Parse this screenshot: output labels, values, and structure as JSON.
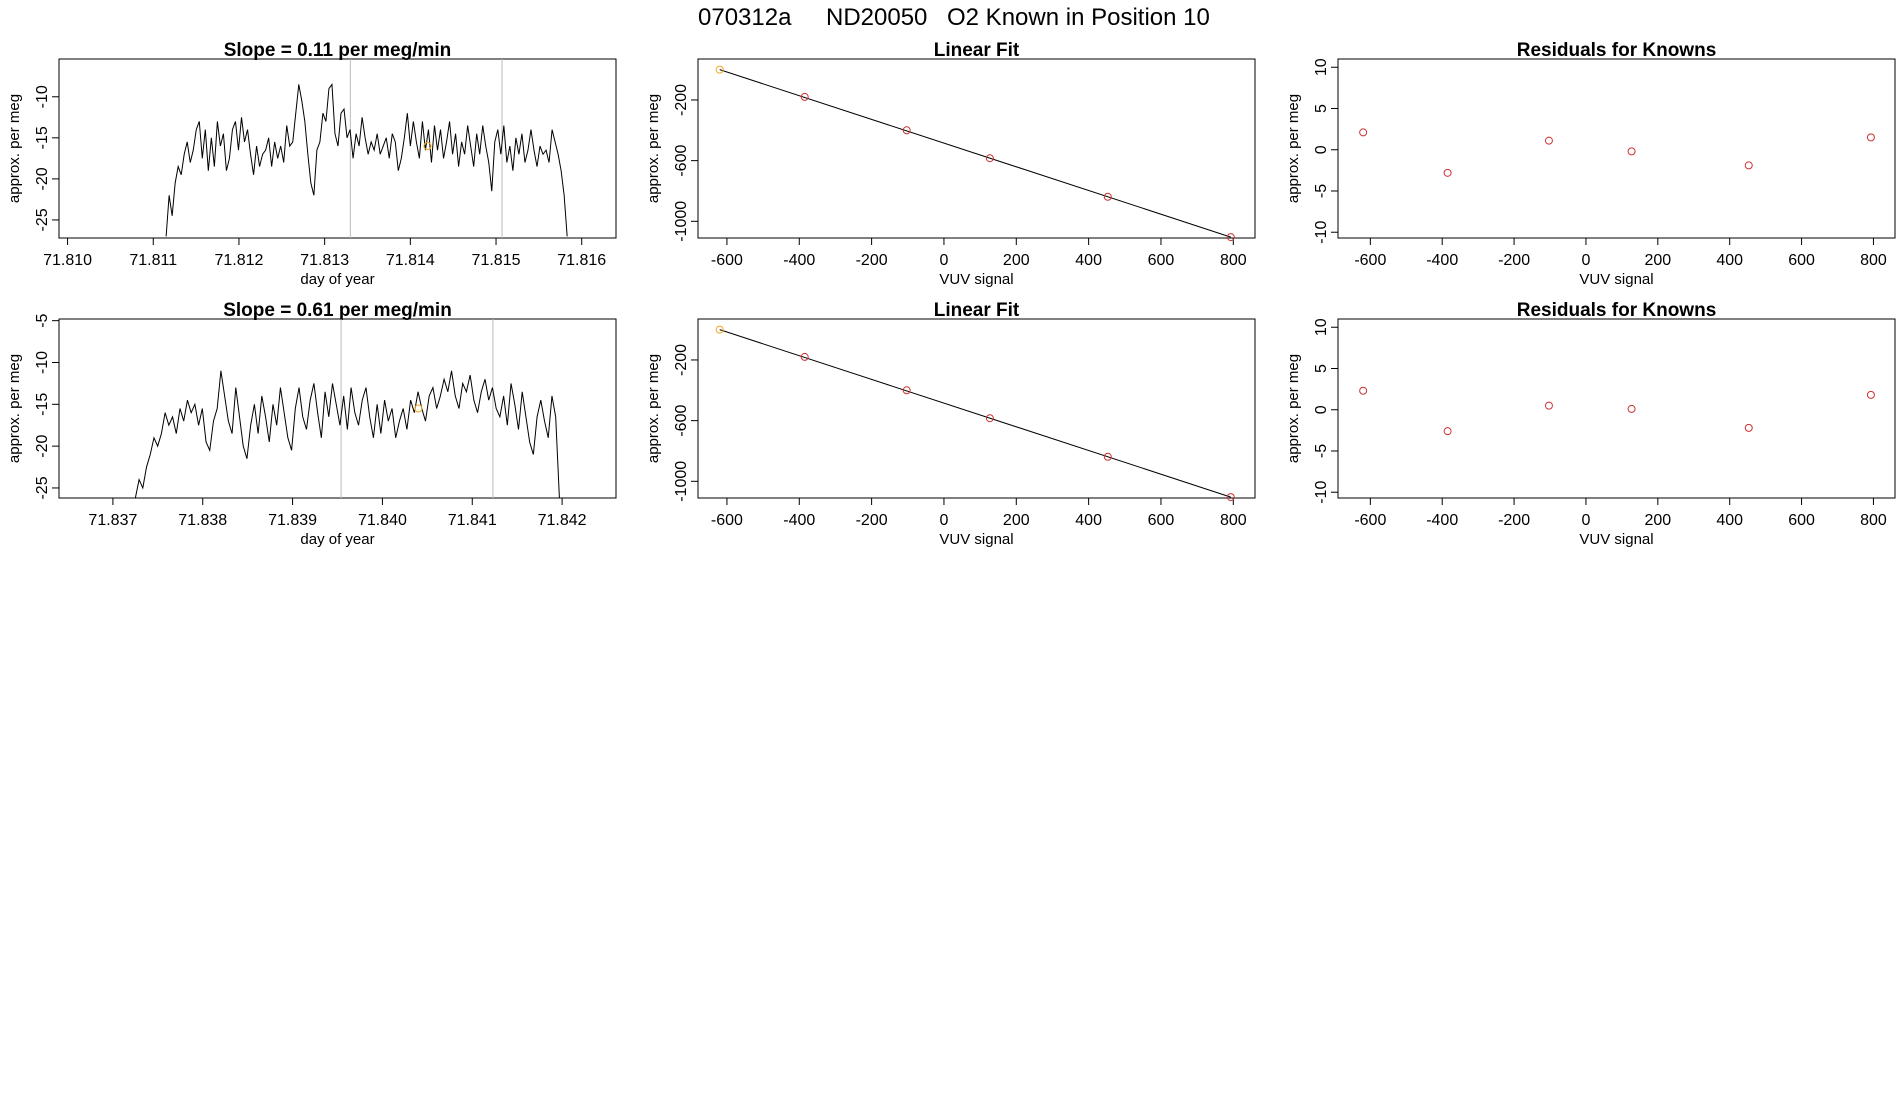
{
  "page": {
    "title_parts": [
      "070312a",
      "ND20050",
      "O2 Known in Position  10"
    ]
  },
  "chart_data": [
    {
      "id": "p1",
      "type": "line",
      "title": "Slope =  0.11  per meg/min",
      "xlabel": "day of year",
      "ylabel": "approx. per meg",
      "xlim": [
        71.8099,
        71.8164
      ],
      "ylim": [
        -27.2,
        -5.4
      ],
      "xticks": [
        71.81,
        71.811,
        71.812,
        71.813,
        71.814,
        71.815,
        71.816
      ],
      "xtick_labels": [
        "71.810",
        "71.811",
        "71.812",
        "71.813",
        "71.814",
        "71.815",
        "71.816"
      ],
      "yticks": [
        -25,
        -20,
        -15,
        -10
      ],
      "ytick_labels": [
        "-25",
        "-20",
        "-15",
        "-10"
      ],
      "vlines": [
        71.8133,
        71.81507
      ],
      "highlight_point": {
        "x": 71.8142,
        "y": -16.0,
        "color": "#f5a623"
      },
      "line_color": "#000000",
      "series": [
        {
          "x_start": 71.81115,
          "x_end": 71.81583,
          "values": [
            -27.0,
            -22.0,
            -24.5,
            -20.5,
            -18.5,
            -19.5,
            -17.0,
            -15.5,
            -18.0,
            -16.5,
            -14.0,
            -13.0,
            -17.5,
            -14.0,
            -19.0,
            -15.0,
            -18.5,
            -13.0,
            -16.0,
            -14.5,
            -19.0,
            -17.5,
            -14.0,
            -13.0,
            -16.5,
            -12.5,
            -15.5,
            -14.0,
            -17.0,
            -19.5,
            -16.0,
            -18.5,
            -17.0,
            -16.5,
            -15.0,
            -18.5,
            -15.5,
            -17.5,
            -16.0,
            -18.0,
            -13.5,
            -16.0,
            -15.5,
            -12.0,
            -8.5,
            -10.5,
            -13.0,
            -17.0,
            -20.5,
            -22.0,
            -16.5,
            -15.5,
            -12.0,
            -13.0,
            -9.0,
            -8.5,
            -14.5,
            -16.0,
            -12.0,
            -11.5,
            -15.0,
            -14.0,
            -17.5,
            -14.5,
            -16.0,
            -12.5,
            -15.0,
            -17.0,
            -15.5,
            -16.5,
            -14.5,
            -17.0,
            -16.0,
            -15.0,
            -17.5,
            -14.5,
            -15.5,
            -19.0,
            -17.5,
            -15.0,
            -12.0,
            -16.0,
            -13.0,
            -15.5,
            -17.5,
            -13.0,
            -16.5,
            -14.0,
            -18.0,
            -13.5,
            -16.5,
            -14.0,
            -17.5,
            -15.5,
            -13.0,
            -17.0,
            -14.5,
            -18.5,
            -15.5,
            -17.0,
            -13.5,
            -16.0,
            -18.5,
            -14.5,
            -17.0,
            -13.5,
            -16.0,
            -18.0,
            -21.5,
            -15.5,
            -14.0,
            -17.0,
            -13.5,
            -18.0,
            -16.0,
            -19.0,
            -15.0,
            -17.0,
            -14.5,
            -18.0,
            -16.5,
            -14.0,
            -16.5,
            -18.5,
            -16.0,
            -17.0,
            -16.5,
            -18.0,
            -14.0,
            -15.5,
            -17.0,
            -19.0,
            -22.0,
            -27.0
          ]
        }
      ]
    },
    {
      "id": "p2",
      "type": "scatter",
      "title": "Linear Fit",
      "xlabel": "VUV signal",
      "ylabel": "approx. per meg",
      "xlim": [
        -680,
        860
      ],
      "ylim": [
        -1110,
        70
      ],
      "xticks": [
        -600,
        -400,
        -200,
        0,
        200,
        400,
        600,
        800
      ],
      "xtick_labels": [
        "-600",
        "-400",
        "-200",
        "0",
        "200",
        "400",
        "600",
        "800"
      ],
      "yticks": [
        -1000,
        -600,
        -200
      ],
      "ytick_labels": [
        "-1000",
        "-600",
        "-200"
      ],
      "points": {
        "x": [
          -620,
          -385,
          -103,
          127,
          453,
          793
        ],
        "y": [
          0,
          -180,
          -400,
          -584,
          -838,
          -1104
        ]
      },
      "highlight_index": 0,
      "highlight_color": "#f5a623",
      "point_color": "#cc3333",
      "fit_line": {
        "x": [
          -620,
          793
        ],
        "y": [
          0,
          -1104
        ]
      }
    },
    {
      "id": "p3",
      "type": "scatter",
      "title": "Residuals for Knowns",
      "xlabel": "VUV signal",
      "ylabel": "approx. per meg",
      "xlim": [
        -690,
        860
      ],
      "ylim": [
        -10.7,
        11.0
      ],
      "xticks": [
        -600,
        -400,
        -200,
        0,
        200,
        400,
        600,
        800
      ],
      "xtick_labels": [
        "-600",
        "-400",
        "-200",
        "0",
        "200",
        "400",
        "600",
        "800"
      ],
      "yticks": [
        -10,
        -5,
        0,
        5,
        10
      ],
      "ytick_labels": [
        "-10",
        "-5",
        "0",
        "5",
        "10"
      ],
      "points": {
        "x": [
          -620,
          -385,
          -103,
          127,
          453,
          793
        ],
        "y": [
          2.1,
          -2.8,
          1.1,
          -0.2,
          -1.9,
          1.5
        ]
      },
      "point_color": "#cc3333"
    },
    {
      "id": "p4",
      "type": "line",
      "title": "Slope =  0.61  per meg/min",
      "xlabel": "day of year",
      "ylabel": "approx. per meg",
      "xlim": [
        71.8364,
        71.8426
      ],
      "ylim": [
        -26.2,
        -4.8
      ],
      "xticks": [
        71.837,
        71.838,
        71.839,
        71.84,
        71.841,
        71.842
      ],
      "xtick_labels": [
        "71.837",
        "71.838",
        "71.839",
        "71.840",
        "71.841",
        "71.842"
      ],
      "yticks": [
        -25,
        -20,
        -15,
        -10,
        -5
      ],
      "ytick_labels": [
        "-25",
        "-20",
        "-15",
        "-10",
        "-5"
      ],
      "vlines": [
        71.83954,
        71.84123
      ],
      "highlight_point": {
        "x": 71.8404,
        "y": -15.5,
        "color": "#f5a623"
      },
      "line_color": "#000000",
      "series": [
        {
          "x_start": 71.83725,
          "x_end": 71.84197,
          "values": [
            -26.5,
            -24.0,
            -25.0,
            -22.5,
            -21.0,
            -19.0,
            -20.0,
            -18.5,
            -16.0,
            -17.5,
            -16.5,
            -18.5,
            -15.5,
            -17.0,
            -14.5,
            -16.0,
            -15.0,
            -17.5,
            -15.5,
            -19.5,
            -20.5,
            -17.0,
            -15.5,
            -11.0,
            -14.0,
            -17.0,
            -18.5,
            -13.0,
            -16.5,
            -20.0,
            -21.5,
            -17.5,
            -15.0,
            -18.5,
            -14.0,
            -16.5,
            -19.5,
            -15.0,
            -17.5,
            -13.0,
            -16.0,
            -19.0,
            -20.5,
            -15.5,
            -13.0,
            -16.5,
            -18.0,
            -14.5,
            -12.5,
            -16.0,
            -19.0,
            -13.5,
            -16.5,
            -12.5,
            -15.0,
            -17.5,
            -14.0,
            -18.0,
            -13.0,
            -16.0,
            -17.5,
            -14.5,
            -13.0,
            -16.5,
            -19.0,
            -15.0,
            -18.5,
            -14.5,
            -17.0,
            -15.5,
            -19.0,
            -17.0,
            -15.5,
            -18.0,
            -14.5,
            -16.0,
            -13.5,
            -15.5,
            -17.0,
            -14.0,
            -13.0,
            -15.5,
            -14.0,
            -12.0,
            -13.5,
            -11.0,
            -14.0,
            -15.5,
            -12.5,
            -13.5,
            -11.5,
            -14.5,
            -16.0,
            -13.5,
            -12.0,
            -14.5,
            -13.0,
            -15.5,
            -16.5,
            -14.0,
            -17.5,
            -12.5,
            -15.0,
            -18.0,
            -13.5,
            -16.5,
            -19.5,
            -21.0,
            -16.5,
            -14.5,
            -17.0,
            -19.0,
            -14.0,
            -16.5,
            -26.5
          ]
        }
      ]
    },
    {
      "id": "p5",
      "type": "scatter",
      "title": "Linear Fit",
      "xlabel": "VUV signal",
      "ylabel": "approx. per meg",
      "xlim": [
        -680,
        860
      ],
      "ylim": [
        -1110,
        70
      ],
      "xticks": [
        -600,
        -400,
        -200,
        0,
        200,
        400,
        600,
        800
      ],
      "xtick_labels": [
        "-600",
        "-400",
        "-200",
        "0",
        "200",
        "400",
        "600",
        "800"
      ],
      "yticks": [
        -1000,
        -600,
        -200
      ],
      "ytick_labels": [
        "-1000",
        "-600",
        "-200"
      ],
      "points": {
        "x": [
          -620,
          -385,
          -103,
          127,
          453,
          793
        ],
        "y": [
          0,
          -180,
          -400,
          -584,
          -838,
          -1104
        ]
      },
      "highlight_index": 0,
      "highlight_color": "#f5a623",
      "point_color": "#cc3333",
      "fit_line": {
        "x": [
          -620,
          793
        ],
        "y": [
          0,
          -1104
        ]
      }
    },
    {
      "id": "p6",
      "type": "scatter",
      "title": "Residuals for Knowns",
      "xlabel": "VUV signal",
      "ylabel": "approx. per meg",
      "xlim": [
        -690,
        860
      ],
      "ylim": [
        -10.7,
        11.0
      ],
      "xticks": [
        -600,
        -400,
        -200,
        0,
        200,
        400,
        600,
        800
      ],
      "xtick_labels": [
        "-600",
        "-400",
        "-200",
        "0",
        "200",
        "400",
        "600",
        "800"
      ],
      "yticks": [
        -10,
        -5,
        0,
        5,
        10
      ],
      "ytick_labels": [
        "-10",
        "-5",
        "0",
        "5",
        "10"
      ],
      "points": {
        "x": [
          -620,
          -385,
          -103,
          127,
          453,
          793
        ],
        "y": [
          2.3,
          -2.6,
          0.5,
          0.1,
          -2.2,
          1.8
        ]
      },
      "point_color": "#cc3333"
    }
  ]
}
